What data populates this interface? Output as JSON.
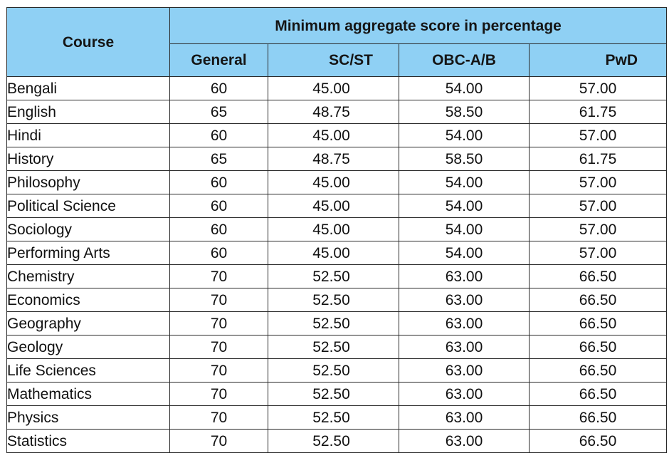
{
  "table": {
    "course_header": "Course",
    "span_header": "Minimum aggregate score in percentage",
    "sub_headers": [
      "General",
      "SC/ST",
      "OBC-A/B",
      "PwD"
    ],
    "rows": [
      {
        "course": "Bengali",
        "general": "60",
        "scst": "45.00",
        "obc": "54.00",
        "pwd": "57.00"
      },
      {
        "course": "English",
        "general": "65",
        "scst": "48.75",
        "obc": "58.50",
        "pwd": "61.75"
      },
      {
        "course": "Hindi",
        "general": "60",
        "scst": "45.00",
        "obc": "54.00",
        "pwd": "57.00"
      },
      {
        "course": "History",
        "general": "65",
        "scst": "48.75",
        "obc": "58.50",
        "pwd": "61.75"
      },
      {
        "course": "Philosophy",
        "general": "60",
        "scst": "45.00",
        "obc": "54.00",
        "pwd": "57.00"
      },
      {
        "course": "Political Science",
        "general": "60",
        "scst": "45.00",
        "obc": "54.00",
        "pwd": "57.00"
      },
      {
        "course": "Sociology",
        "general": "60",
        "scst": "45.00",
        "obc": "54.00",
        "pwd": "57.00"
      },
      {
        "course": "Performing Arts",
        "general": "60",
        "scst": "45.00",
        "obc": "54.00",
        "pwd": "57.00"
      },
      {
        "course": "Chemistry",
        "general": "70",
        "scst": "52.50",
        "obc": "63.00",
        "pwd": "66.50"
      },
      {
        "course": "Economics",
        "general": "70",
        "scst": "52.50",
        "obc": "63.00",
        "pwd": "66.50"
      },
      {
        "course": "Geography",
        "general": "70",
        "scst": "52.50",
        "obc": "63.00",
        "pwd": "66.50"
      },
      {
        "course": "Geology",
        "general": "70",
        "scst": "52.50",
        "obc": "63.00",
        "pwd": "66.50"
      },
      {
        "course": "Life Sciences",
        "general": "70",
        "scst": "52.50",
        "obc": "63.00",
        "pwd": "66.50"
      },
      {
        "course": "Mathematics",
        "general": "70",
        "scst": "52.50",
        "obc": "63.00",
        "pwd": "66.50"
      },
      {
        "course": "Physics",
        "general": "70",
        "scst": "52.50",
        "obc": "63.00",
        "pwd": "66.50"
      },
      {
        "course": "Statistics",
        "general": "70",
        "scst": "52.50",
        "obc": "63.00",
        "pwd": "66.50"
      }
    ]
  },
  "colors": {
    "header_background": "#8fd0f4",
    "border": "#2a2a2a"
  }
}
